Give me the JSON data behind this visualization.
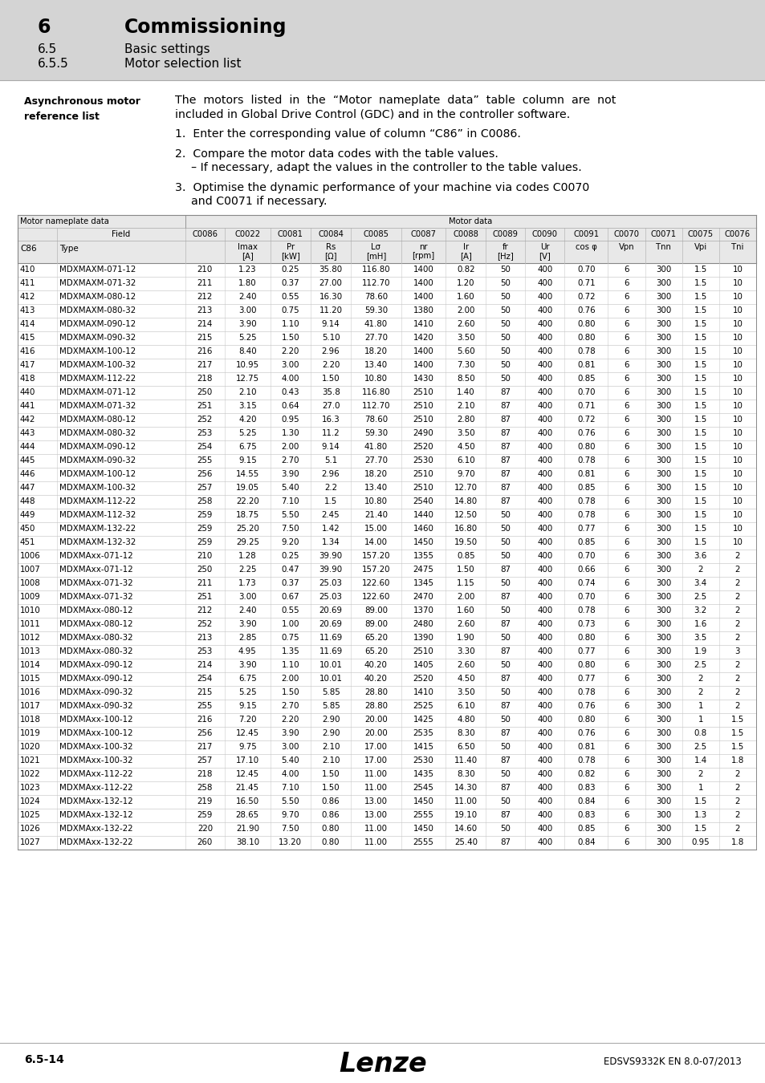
{
  "header_bg": "#d4d4d4",
  "page_bg": "#ffffff",
  "header_section": {
    "number": "6",
    "title": "Commissioning",
    "sub1_num": "6.5",
    "sub1_title": "Basic settings",
    "sub2_num": "6.5.5",
    "sub2_title": "Motor selection list"
  },
  "sidebar_label": "Asynchronous motor\nreference list",
  "rows": [
    [
      410,
      "MDXMAXM-071-12",
      210,
      "1.23",
      "0.25",
      "35.80",
      "116.80",
      1400,
      "0.82",
      50,
      400,
      "0.70",
      6,
      300,
      "1.5",
      10
    ],
    [
      411,
      "MDXMAXM-071-32",
      211,
      "1.80",
      "0.37",
      "27.00",
      "112.70",
      1400,
      "1.20",
      50,
      400,
      "0.71",
      6,
      300,
      "1.5",
      10
    ],
    [
      412,
      "MDXMAXM-080-12",
      212,
      "2.40",
      "0.55",
      "16.30",
      "78.60",
      1400,
      "1.60",
      50,
      400,
      "0.72",
      6,
      300,
      "1.5",
      10
    ],
    [
      413,
      "MDXMAXM-080-32",
      213,
      "3.00",
      "0.75",
      "11.20",
      "59.30",
      1380,
      "2.00",
      50,
      400,
      "0.76",
      6,
      300,
      "1.5",
      10
    ],
    [
      414,
      "MDXMAXM-090-12",
      214,
      "3.90",
      "1.10",
      "9.14",
      "41.80",
      1410,
      "2.60",
      50,
      400,
      "0.80",
      6,
      300,
      "1.5",
      10
    ],
    [
      415,
      "MDXMAXM-090-32",
      215,
      "5.25",
      "1.50",
      "5.10",
      "27.70",
      1420,
      "3.50",
      50,
      400,
      "0.80",
      6,
      300,
      "1.5",
      10
    ],
    [
      416,
      "MDXMAXM-100-12",
      216,
      "8.40",
      "2.20",
      "2.96",
      "18.20",
      1400,
      "5.60",
      50,
      400,
      "0.78",
      6,
      300,
      "1.5",
      10
    ],
    [
      417,
      "MDXMAXM-100-32",
      217,
      "10.95",
      "3.00",
      "2.20",
      "13.40",
      1400,
      "7.30",
      50,
      400,
      "0.81",
      6,
      300,
      "1.5",
      10
    ],
    [
      418,
      "MDXMAXM-112-22",
      218,
      "12.75",
      "4.00",
      "1.50",
      "10.80",
      1430,
      "8.50",
      50,
      400,
      "0.85",
      6,
      300,
      "1.5",
      10
    ],
    [
      440,
      "MDXMAXM-071-12",
      250,
      "2.10",
      "0.43",
      "35.8",
      "116.80",
      2510,
      "1.40",
      87,
      400,
      "0.70",
      6,
      300,
      "1.5",
      10
    ],
    [
      441,
      "MDXMAXM-071-32",
      251,
      "3.15",
      "0.64",
      "27.0",
      "112.70",
      2510,
      "2.10",
      87,
      400,
      "0.71",
      6,
      300,
      "1.5",
      10
    ],
    [
      442,
      "MDXMAXM-080-12",
      252,
      "4.20",
      "0.95",
      "16.3",
      "78.60",
      2510,
      "2.80",
      87,
      400,
      "0.72",
      6,
      300,
      "1.5",
      10
    ],
    [
      443,
      "MDXMAXM-080-32",
      253,
      "5.25",
      "1.30",
      "11.2",
      "59.30",
      2490,
      "3.50",
      87,
      400,
      "0.76",
      6,
      300,
      "1.5",
      10
    ],
    [
      444,
      "MDXMAXM-090-12",
      254,
      "6.75",
      "2.00",
      "9.14",
      "41.80",
      2520,
      "4.50",
      87,
      400,
      "0.80",
      6,
      300,
      "1.5",
      10
    ],
    [
      445,
      "MDXMAXM-090-32",
      255,
      "9.15",
      "2.70",
      "5.1",
      "27.70",
      2530,
      "6.10",
      87,
      400,
      "0.78",
      6,
      300,
      "1.5",
      10
    ],
    [
      446,
      "MDXMAXM-100-12",
      256,
      "14.55",
      "3.90",
      "2.96",
      "18.20",
      2510,
      "9.70",
      87,
      400,
      "0.81",
      6,
      300,
      "1.5",
      10
    ],
    [
      447,
      "MDXMAXM-100-32",
      257,
      "19.05",
      "5.40",
      "2.2",
      "13.40",
      2510,
      "12.70",
      87,
      400,
      "0.85",
      6,
      300,
      "1.5",
      10
    ],
    [
      448,
      "MDXMAXM-112-22",
      258,
      "22.20",
      "7.10",
      "1.5",
      "10.80",
      2540,
      "14.80",
      87,
      400,
      "0.78",
      6,
      300,
      "1.5",
      10
    ],
    [
      449,
      "MDXMAXM-112-32",
      259,
      "18.75",
      "5.50",
      "2.45",
      "21.40",
      1440,
      "12.50",
      50,
      400,
      "0.78",
      6,
      300,
      "1.5",
      10
    ],
    [
      450,
      "MDXMAXM-132-22",
      259,
      "25.20",
      "7.50",
      "1.42",
      "15.00",
      1460,
      "16.80",
      50,
      400,
      "0.77",
      6,
      300,
      "1.5",
      10
    ],
    [
      451,
      "MDXMAXM-132-32",
      259,
      "29.25",
      "9.20",
      "1.34",
      "14.00",
      1450,
      "19.50",
      50,
      400,
      "0.85",
      6,
      300,
      "1.5",
      10
    ],
    [
      1006,
      "MDXMAxx-071-12",
      210,
      "1.28",
      "0.25",
      "39.90",
      "157.20",
      1355,
      "0.85",
      50,
      400,
      "0.70",
      6,
      300,
      "3.6",
      2
    ],
    [
      1007,
      "MDXMAxx-071-12",
      250,
      "2.25",
      "0.47",
      "39.90",
      "157.20",
      2475,
      "1.50",
      87,
      400,
      "0.66",
      6,
      300,
      2,
      2
    ],
    [
      1008,
      "MDXMAxx-071-32",
      211,
      "1.73",
      "0.37",
      "25.03",
      "122.60",
      1345,
      "1.15",
      50,
      400,
      "0.74",
      6,
      300,
      "3.4",
      2
    ],
    [
      1009,
      "MDXMAxx-071-32",
      251,
      "3.00",
      "0.67",
      "25.03",
      "122.60",
      2470,
      "2.00",
      87,
      400,
      "0.70",
      6,
      300,
      "2.5",
      2
    ],
    [
      1010,
      "MDXMAxx-080-12",
      212,
      "2.40",
      "0.55",
      "20.69",
      "89.00",
      1370,
      "1.60",
      50,
      400,
      "0.78",
      6,
      300,
      "3.2",
      2
    ],
    [
      1011,
      "MDXMAxx-080-12",
      252,
      "3.90",
      "1.00",
      "20.69",
      "89.00",
      2480,
      "2.60",
      87,
      400,
      "0.73",
      6,
      300,
      "1.6",
      2
    ],
    [
      1012,
      "MDXMAxx-080-32",
      213,
      "2.85",
      "0.75",
      "11.69",
      "65.20",
      1390,
      "1.90",
      50,
      400,
      "0.80",
      6,
      300,
      "3.5",
      2
    ],
    [
      1013,
      "MDXMAxx-080-32",
      253,
      "4.95",
      "1.35",
      "11.69",
      "65.20",
      2510,
      "3.30",
      87,
      400,
      "0.77",
      6,
      300,
      "1.9",
      3
    ],
    [
      1014,
      "MDXMAxx-090-12",
      214,
      "3.90",
      "1.10",
      "10.01",
      "40.20",
      1405,
      "2.60",
      50,
      400,
      "0.80",
      6,
      300,
      "2.5",
      2
    ],
    [
      1015,
      "MDXMAxx-090-12",
      254,
      "6.75",
      "2.00",
      "10.01",
      "40.20",
      2520,
      "4.50",
      87,
      400,
      "0.77",
      6,
      300,
      2,
      2
    ],
    [
      1016,
      "MDXMAxx-090-32",
      215,
      "5.25",
      "1.50",
      "5.85",
      "28.80",
      1410,
      "3.50",
      50,
      400,
      "0.78",
      6,
      300,
      2,
      2
    ],
    [
      1017,
      "MDXMAxx-090-32",
      255,
      "9.15",
      "2.70",
      "5.85",
      "28.80",
      2525,
      "6.10",
      87,
      400,
      "0.76",
      6,
      300,
      1,
      2
    ],
    [
      1018,
      "MDXMAxx-100-12",
      216,
      "7.20",
      "2.20",
      "2.90",
      "20.00",
      1425,
      "4.80",
      50,
      400,
      "0.80",
      6,
      300,
      1,
      "1.5"
    ],
    [
      1019,
      "MDXMAxx-100-12",
      256,
      "12.45",
      "3.90",
      "2.90",
      "20.00",
      2535,
      "8.30",
      87,
      400,
      "0.76",
      6,
      300,
      "0.8",
      "1.5"
    ],
    [
      1020,
      "MDXMAxx-100-32",
      217,
      "9.75",
      "3.00",
      "2.10",
      "17.00",
      1415,
      "6.50",
      50,
      400,
      "0.81",
      6,
      300,
      "2.5",
      "1.5"
    ],
    [
      1021,
      "MDXMAxx-100-32",
      257,
      "17.10",
      "5.40",
      "2.10",
      "17.00",
      2530,
      "11.40",
      87,
      400,
      "0.78",
      6,
      300,
      "1.4",
      "1.8"
    ],
    [
      1022,
      "MDXMAxx-112-22",
      218,
      "12.45",
      "4.00",
      "1.50",
      "11.00",
      1435,
      "8.30",
      50,
      400,
      "0.82",
      6,
      300,
      2,
      2
    ],
    [
      1023,
      "MDXMAxx-112-22",
      258,
      "21.45",
      "7.10",
      "1.50",
      "11.00",
      2545,
      "14.30",
      87,
      400,
      "0.83",
      6,
      300,
      1,
      2
    ],
    [
      1024,
      "MDXMAxx-132-12",
      219,
      "16.50",
      "5.50",
      "0.86",
      "13.00",
      1450,
      "11.00",
      50,
      400,
      "0.84",
      6,
      300,
      "1.5",
      2
    ],
    [
      1025,
      "MDXMAxx-132-12",
      259,
      "28.65",
      "9.70",
      "0.86",
      "13.00",
      2555,
      "19.10",
      87,
      400,
      "0.83",
      6,
      300,
      "1.3",
      2
    ],
    [
      1026,
      "MDXMAxx-132-22",
      220,
      "21.90",
      "7.50",
      "0.80",
      "11.00",
      1450,
      "14.60",
      50,
      400,
      "0.85",
      6,
      300,
      "1.5",
      2
    ],
    [
      1027,
      "MDXMAxx-132-22",
      260,
      "38.10",
      "13.20",
      "0.80",
      "11.00",
      2555,
      "25.40",
      87,
      400,
      "0.84",
      6,
      300,
      "0.95",
      "1.8"
    ]
  ],
  "footer_left": "6.5-14",
  "footer_center": "Lenze",
  "footer_right": "EDSVS9332K EN 8.0-07/2013"
}
